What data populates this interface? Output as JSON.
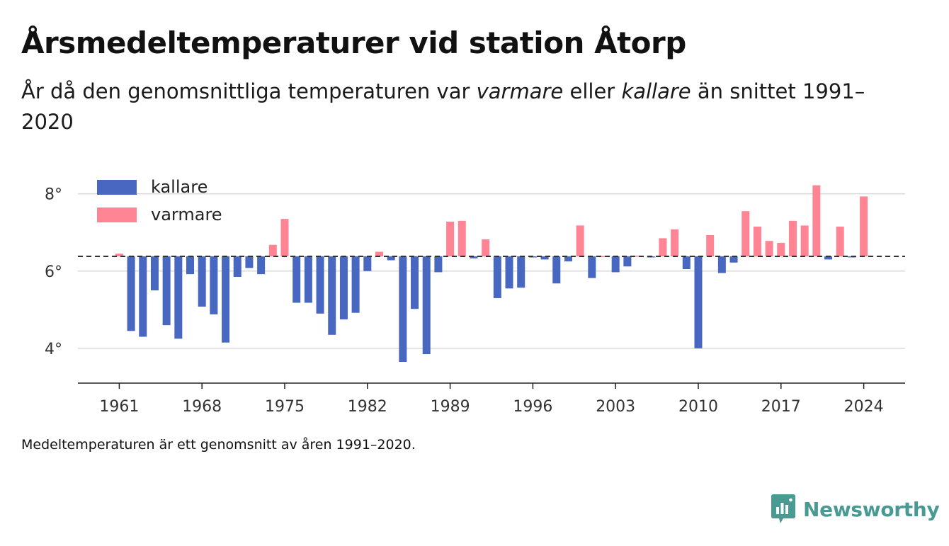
{
  "title": "Årsmedeltemperaturer vid station Åtorp",
  "subtitle": {
    "part1": "År då den genomsnittliga temperaturen var ",
    "warm_word": "varmare",
    "part2": " eller ",
    "cold_word": "kallare",
    "part3": " än snittet 1991–2020"
  },
  "footnote": "Medeltemperaturen är ett genomsnitt av åren 1991–2020.",
  "brand": {
    "name": "Newsworthy",
    "icon": "newsworthy-logo-icon"
  },
  "colors": {
    "warm": "#ff8595",
    "cold": "#4767c0",
    "grid": "#d9d9d9",
    "baseline": "#333333",
    "axis": "#222222",
    "brand": "#4a9a94"
  },
  "chart_data": {
    "type": "bar",
    "baseline": 6.38,
    "ylim": [
      3.1,
      8.8
    ],
    "xlim": [
      1957.5,
      2027.5
    ],
    "yticks": [
      4,
      6,
      8
    ],
    "ytick_labels": [
      "4°",
      "6°",
      "8°"
    ],
    "xticks": [
      1961,
      1968,
      1975,
      1982,
      1989,
      1996,
      2003,
      2010,
      2017,
      2024
    ],
    "xtick_labels": [
      "1961",
      "1968",
      "1975",
      "1982",
      "1989",
      "1996",
      "2003",
      "2010",
      "2017",
      "2024"
    ],
    "grid": true,
    "legend": {
      "placement": "top-left",
      "entries": [
        {
          "label": "kallare",
          "color": "#4767c0"
        },
        {
          "label": "varmare",
          "color": "#ff8595"
        }
      ]
    },
    "series": [
      {
        "name": "kallare"
      },
      {
        "name": "varmare"
      }
    ],
    "years": [
      1961,
      1962,
      1963,
      1964,
      1965,
      1966,
      1967,
      1968,
      1969,
      1970,
      1971,
      1972,
      1973,
      1974,
      1975,
      1976,
      1977,
      1978,
      1979,
      1980,
      1981,
      1982,
      1983,
      1984,
      1985,
      1986,
      1987,
      1988,
      1989,
      1990,
      1991,
      1992,
      1993,
      1994,
      1995,
      1996,
      1997,
      1998,
      1999,
      2000,
      2001,
      2002,
      2003,
      2004,
      2005,
      2006,
      2007,
      2008,
      2009,
      2010,
      2011,
      2012,
      2013,
      2014,
      2015,
      2016,
      2017,
      2018,
      2019,
      2020,
      2021,
      2022,
      2023,
      2024
    ],
    "values": [
      6.45,
      4.45,
      4.3,
      5.5,
      4.6,
      4.25,
      5.92,
      5.08,
      4.88,
      4.15,
      5.85,
      6.08,
      5.92,
      6.68,
      7.35,
      5.18,
      5.18,
      4.9,
      4.35,
      4.75,
      4.92,
      6.0,
      6.5,
      6.28,
      3.65,
      5.02,
      3.85,
      5.97,
      7.28,
      7.3,
      6.33,
      6.82,
      5.3,
      5.55,
      5.57,
      6.36,
      6.3,
      5.68,
      6.25,
      7.18,
      5.82,
      6.39,
      5.97,
      6.12,
      6.4,
      6.37,
      6.85,
      7.08,
      6.05,
      4.0,
      6.93,
      5.95,
      6.22,
      7.55,
      7.15,
      6.78,
      6.73,
      7.3,
      7.18,
      8.22,
      6.3,
      7.15,
      6.36,
      7.93
    ]
  }
}
